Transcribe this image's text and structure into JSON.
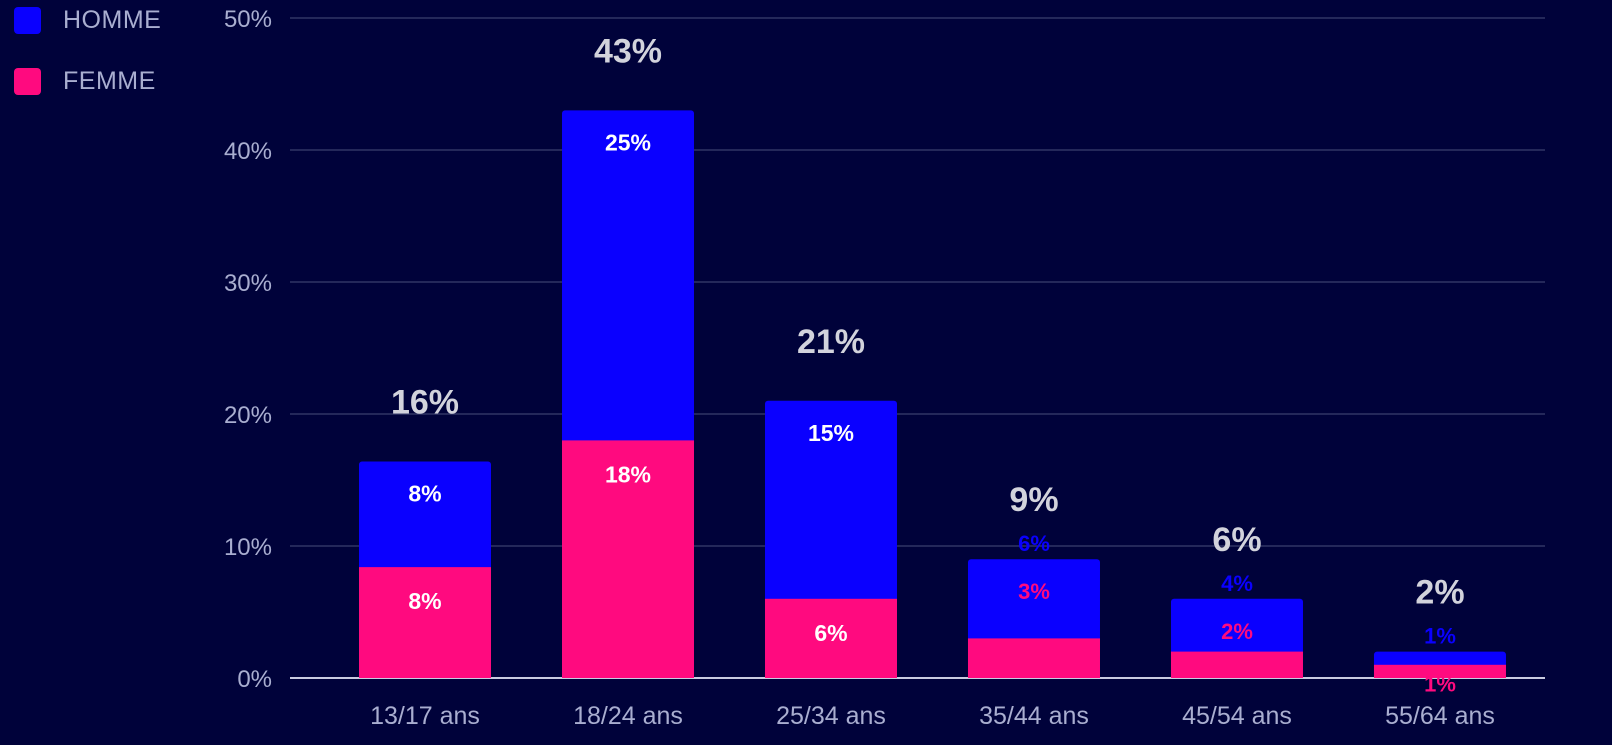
{
  "chart_data": {
    "type": "bar",
    "stacked": true,
    "categories": [
      "13/17 ans",
      "18/24 ans",
      "25/34 ans",
      "35/44 ans",
      "45/54 ans",
      "55/64 ans"
    ],
    "series": [
      {
        "name": "FEMME",
        "color": "#ff0a7f",
        "values": [
          8.4,
          18,
          6,
          3,
          2,
          1
        ],
        "labels": [
          "8%",
          "18%",
          "6%",
          "3%",
          "2%",
          "1%"
        ]
      },
      {
        "name": "HOMME",
        "color": "#0a00ff",
        "values": [
          8,
          25,
          15,
          6,
          4,
          1
        ],
        "labels": [
          "8%",
          "25%",
          "15%",
          "6%",
          "4%",
          "1%"
        ]
      }
    ],
    "totals": [
      "16%",
      "43%",
      "21%",
      "9%",
      "6%",
      "2%"
    ],
    "yticks": [
      "0%",
      "10%",
      "20%",
      "30%",
      "40%",
      "50%"
    ],
    "ylim": [
      0,
      50
    ],
    "grid": true,
    "legend": "top-left",
    "xlabel": "",
    "ylabel": "",
    "title": ""
  },
  "colors": {
    "background": "#00023a",
    "grid": "#3b3f6e",
    "axis_text": "#a9aed0",
    "total_text": "#d2d3dc",
    "inner_label": "#ffffff"
  }
}
